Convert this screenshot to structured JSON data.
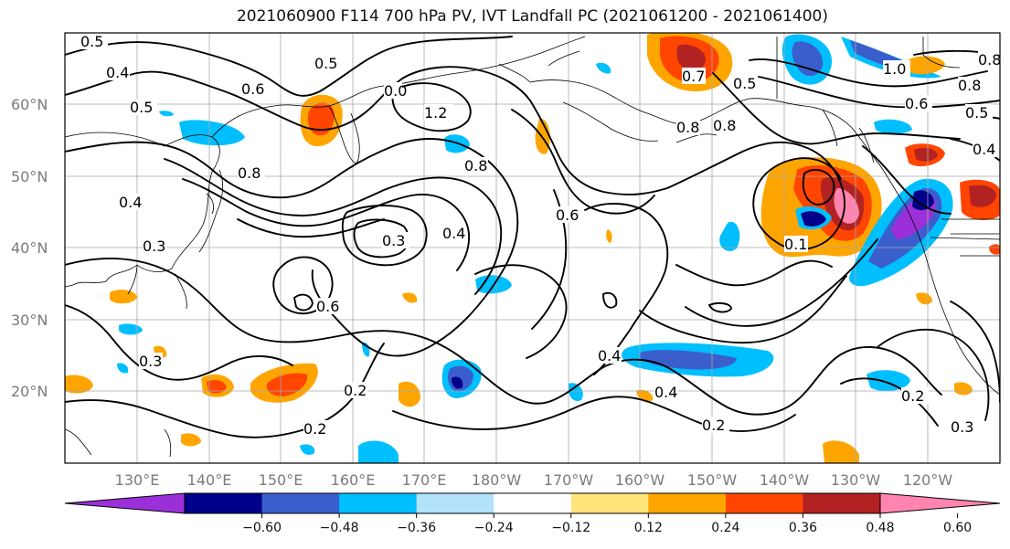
{
  "title": "2021060900 F114 700 hPa PV, IVT Landfall PC (2021061200 - 2021061400)",
  "lat_labels": [
    "60°N",
    "50°N",
    "40°N",
    "30°N",
    "20°N"
  ],
  "lon_labels": [
    "130°E",
    "140°E",
    "150°E",
    "160°E",
    "170°E",
    "180°W",
    "170°W",
    "160°W",
    "150°W",
    "140°W",
    "130°W",
    "120°W"
  ],
  "colorbar": {
    "tick_labels": [
      "−0.60",
      "−0.48",
      "−0.36",
      "−0.24",
      "−0.12",
      "0.12",
      "0.24",
      "0.36",
      "0.48",
      "0.60"
    ],
    "colors": [
      "#9b30d9",
      "#00008b",
      "#3a5fcd",
      "#00bfff",
      "#b2e3fb",
      "#ffffff",
      "#ffe47a",
      "#ffa500",
      "#ff4500",
      "#b22222",
      "#ff85b0"
    ]
  },
  "contour_labels": [
    "0.5",
    "0.4",
    "0.5",
    "0.6",
    "0.5",
    "0.8",
    "0.4",
    "0.3",
    "0.8",
    "0.4",
    "0.3",
    "0.6",
    "0.3",
    "0.4",
    "0.6",
    "0.2",
    "0.2",
    "0.4",
    "0.2",
    "0.8",
    "0.7",
    "0.5",
    "1.2",
    "0.8",
    "1.0",
    "0.6",
    "0.8",
    "0.5",
    "0.8",
    "0.1",
    "0.2",
    "0.3",
    "0.0",
    "0.4"
  ]
}
